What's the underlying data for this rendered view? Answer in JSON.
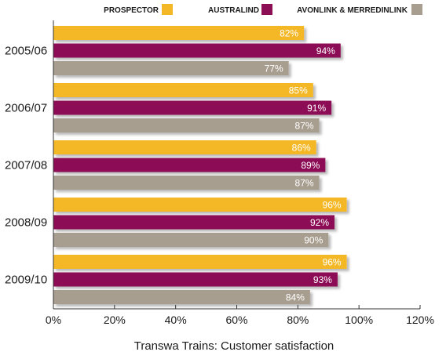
{
  "chart_data": {
    "type": "bar",
    "orientation": "horizontal",
    "categories": [
      "2005/06",
      "2006/07",
      "2007/08",
      "2008/09",
      "2009/10"
    ],
    "series": [
      {
        "name": "PROSPECTOR",
        "color": "#f4b827",
        "values": [
          82,
          85,
          86,
          96,
          96
        ]
      },
      {
        "name": "AUSTRALIND",
        "color": "#8c0f55",
        "values": [
          94,
          91,
          89,
          92,
          93
        ]
      },
      {
        "name": "AVONLINK & MERREDINLINK",
        "color": "#a89e90",
        "values": [
          77,
          87,
          87,
          90,
          84
        ]
      }
    ],
    "data_labels": [
      [
        "82%",
        "94%",
        "77%"
      ],
      [
        "85%",
        "91%",
        "87%"
      ],
      [
        "86%",
        "89%",
        "87%"
      ],
      [
        "96%",
        "92%",
        "90%"
      ],
      [
        "96%",
        "93%",
        "84%"
      ]
    ],
    "xlim": [
      0,
      120
    ],
    "xticks": [
      0,
      20,
      40,
      60,
      80,
      100,
      120
    ],
    "xtick_labels": [
      "0%",
      "20%",
      "40%",
      "60%",
      "80%",
      "100%",
      "120%"
    ],
    "xlabel": "Transwa Trains: Customer satisfaction",
    "legend_position": "top",
    "grid": false
  }
}
